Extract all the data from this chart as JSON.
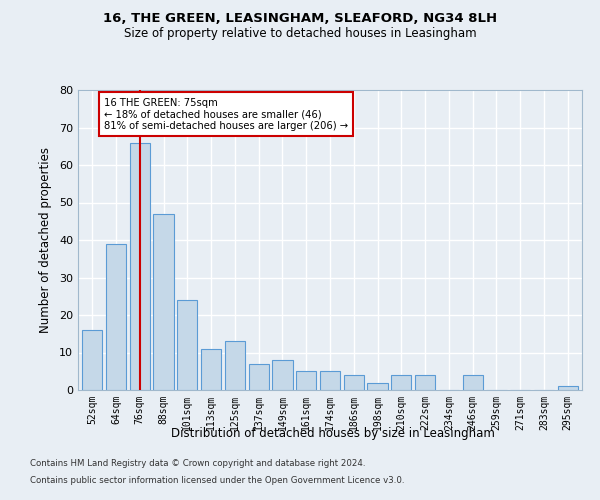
{
  "title1": "16, THE GREEN, LEASINGHAM, SLEAFORD, NG34 8LH",
  "title2": "Size of property relative to detached houses in Leasingham",
  "xlabel": "Distribution of detached houses by size in Leasingham",
  "ylabel": "Number of detached properties",
  "categories": [
    "52sqm",
    "64sqm",
    "76sqm",
    "88sqm",
    "101sqm",
    "113sqm",
    "125sqm",
    "137sqm",
    "149sqm",
    "161sqm",
    "174sqm",
    "186sqm",
    "198sqm",
    "210sqm",
    "222sqm",
    "234sqm",
    "246sqm",
    "259sqm",
    "271sqm",
    "283sqm",
    "295sqm"
  ],
  "values": [
    16,
    39,
    66,
    47,
    24,
    11,
    13,
    7,
    8,
    5,
    5,
    4,
    2,
    4,
    4,
    0,
    4,
    0,
    0,
    0,
    1
  ],
  "bar_color": "#c5d8e8",
  "bar_edge_color": "#5b9bd5",
  "property_index": 2,
  "property_label": "16 THE GREEN: 75sqm",
  "annotation_line1": "← 18% of detached houses are smaller (46)",
  "annotation_line2": "81% of semi-detached houses are larger (206) →",
  "red_line_color": "#cc0000",
  "annotation_box_color": "#cc0000",
  "background_color": "#e8eef4",
  "grid_color": "#ffffff",
  "footer1": "Contains HM Land Registry data © Crown copyright and database right 2024.",
  "footer2": "Contains public sector information licensed under the Open Government Licence v3.0.",
  "ylim": [
    0,
    80
  ],
  "yticks": [
    0,
    10,
    20,
    30,
    40,
    50,
    60,
    70,
    80
  ]
}
